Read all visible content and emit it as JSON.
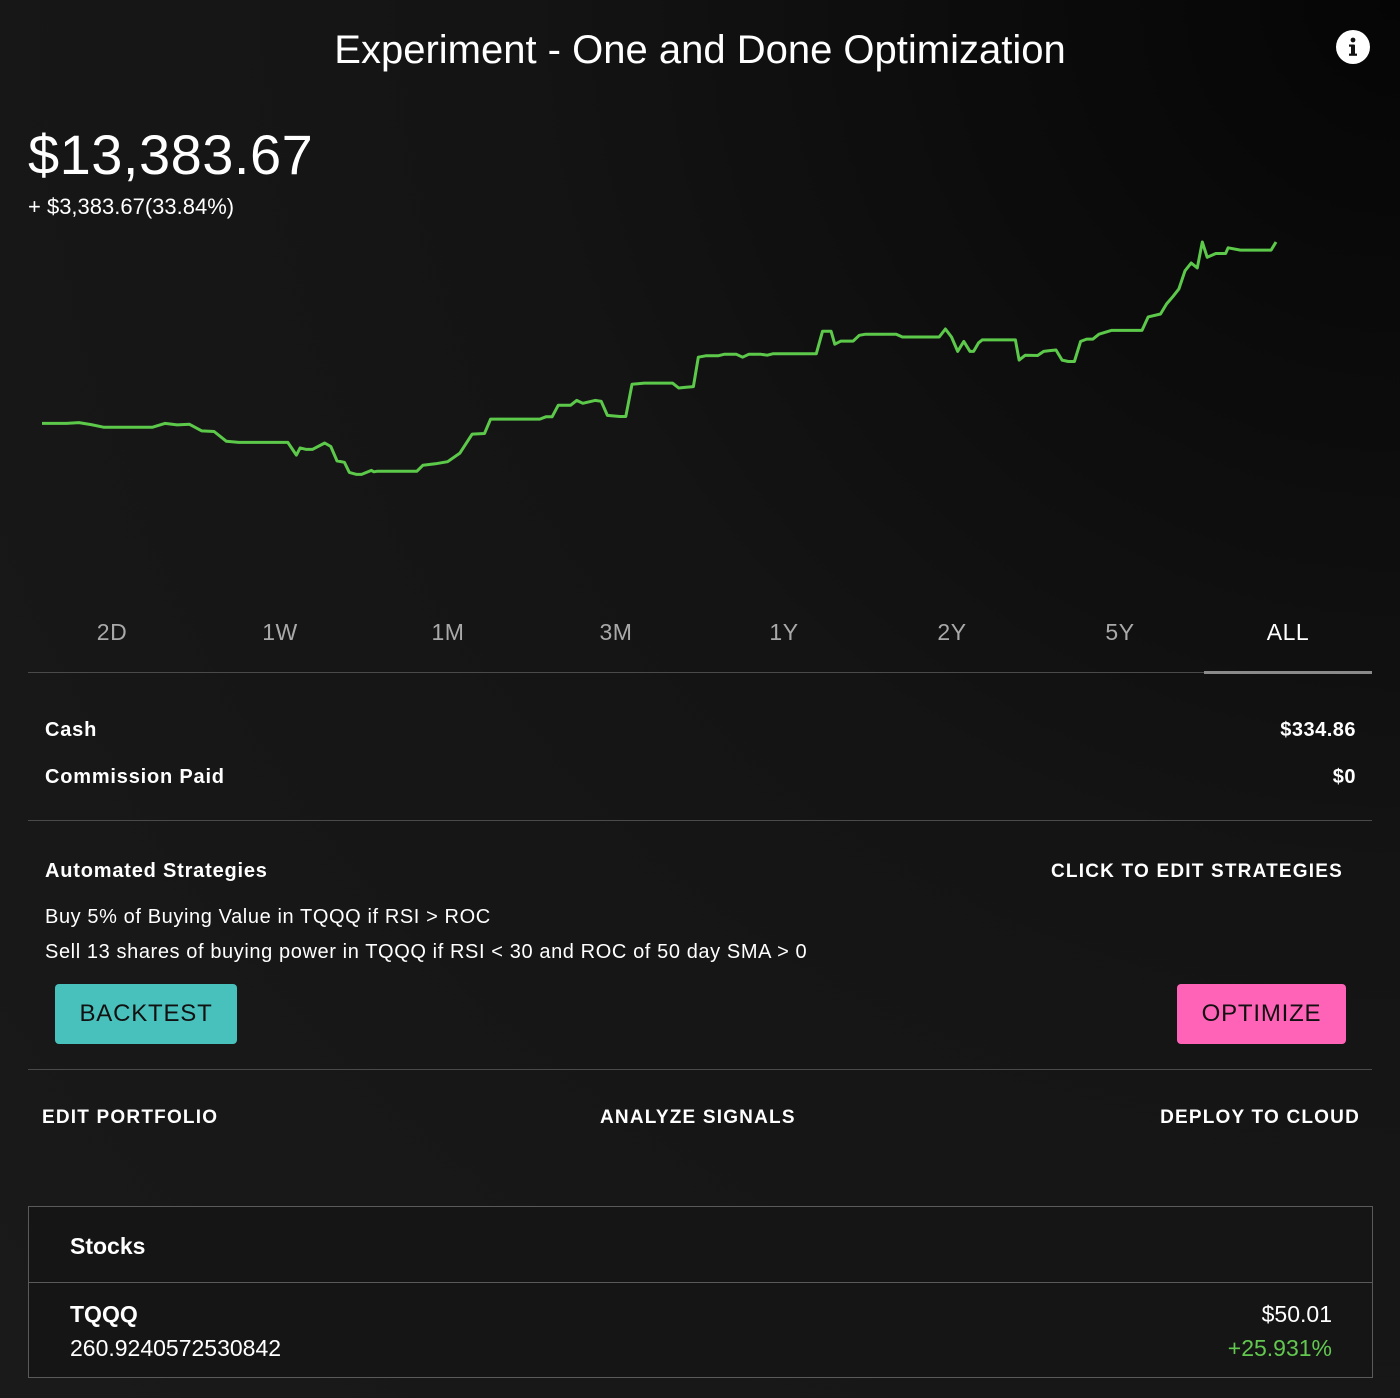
{
  "header": {
    "title": "Experiment - One and Done Optimization",
    "info_icon": "info-icon"
  },
  "portfolio": {
    "value": "$13,383.67",
    "change": "+ $3,383.67(33.84%)"
  },
  "chart_data": {
    "type": "line",
    "title": "",
    "xlabel": "",
    "ylabel": "",
    "color": "#5cc94a",
    "grid": false,
    "ylim": [
      0,
      100
    ],
    "series": [
      {
        "name": "",
        "values": [
          [
            0,
            37
          ],
          [
            2,
            37
          ],
          [
            3,
            37.3
          ],
          [
            4,
            36.6
          ],
          [
            5,
            35.7
          ],
          [
            9,
            35.7
          ],
          [
            10,
            37
          ],
          [
            11,
            36.5
          ],
          [
            12,
            36.7
          ],
          [
            13,
            34.4
          ],
          [
            14,
            34.2
          ],
          [
            15,
            30.8
          ],
          [
            16,
            30.4
          ],
          [
            19,
            30.4
          ],
          [
            20,
            30.4
          ],
          [
            20.7,
            26
          ],
          [
            21,
            28.5
          ],
          [
            21.5,
            28
          ],
          [
            22,
            28
          ],
          [
            23,
            30.2
          ],
          [
            23.5,
            29
          ],
          [
            24,
            24
          ],
          [
            24.6,
            23.5
          ],
          [
            25,
            20
          ],
          [
            25.6,
            19.3
          ],
          [
            26,
            19.3
          ],
          [
            26.8,
            20.7
          ],
          [
            27,
            20.2
          ],
          [
            27.3,
            20.4
          ],
          [
            30.5,
            20.4
          ],
          [
            31,
            22.5
          ],
          [
            32,
            23
          ],
          [
            33,
            23.7
          ],
          [
            34,
            26.7
          ],
          [
            35,
            33.3
          ],
          [
            36,
            33.5
          ],
          [
            36.5,
            38.5
          ],
          [
            40.5,
            38.5
          ],
          [
            41,
            39.3
          ],
          [
            41.5,
            39.3
          ],
          [
            42,
            43.3
          ],
          [
            43,
            43.3
          ],
          [
            43.5,
            45
          ],
          [
            44,
            44
          ],
          [
            45,
            45
          ],
          [
            45.5,
            44.7
          ],
          [
            46,
            39.8
          ],
          [
            47,
            39.4
          ],
          [
            47.5,
            39.4
          ],
          [
            48,
            50.6
          ],
          [
            49,
            51
          ],
          [
            51,
            51
          ],
          [
            51.3,
            51
          ],
          [
            51.8,
            49.3
          ],
          [
            52.3,
            49.5
          ],
          [
            53,
            49.8
          ],
          [
            53.4,
            60
          ],
          [
            54,
            60.5
          ],
          [
            55,
            60.5
          ],
          [
            55.5,
            61
          ],
          [
            56.5,
            61
          ],
          [
            57,
            60
          ],
          [
            57.5,
            61
          ],
          [
            58,
            61
          ],
          [
            58.5,
            61
          ],
          [
            59,
            60.7
          ],
          [
            59.5,
            61.2
          ],
          [
            63,
            61.2
          ],
          [
            63.5,
            69
          ],
          [
            64.2,
            69
          ],
          [
            64.5,
            64.5
          ],
          [
            65,
            65.6
          ],
          [
            66,
            65.6
          ],
          [
            66.5,
            67.6
          ],
          [
            67,
            68
          ],
          [
            68,
            68
          ],
          [
            69.5,
            68
          ],
          [
            70,
            67
          ],
          [
            71,
            67
          ],
          [
            71.5,
            67
          ],
          [
            73,
            67
          ],
          [
            73.5,
            69.8
          ],
          [
            74,
            67
          ],
          [
            74.5,
            62
          ],
          [
            75,
            65.5
          ],
          [
            75.5,
            62
          ],
          [
            75.8,
            62
          ],
          [
            76.2,
            65
          ],
          [
            76.5,
            66
          ],
          [
            79.2,
            66
          ],
          [
            79.5,
            59
          ],
          [
            80,
            60.7
          ],
          [
            81,
            60.6
          ],
          [
            81.5,
            62
          ],
          [
            82,
            62.3
          ],
          [
            82.5,
            62.5
          ],
          [
            83,
            59
          ],
          [
            83.5,
            58.5
          ],
          [
            84,
            58.5
          ],
          [
            84.5,
            65.5
          ],
          [
            85,
            66.3
          ],
          [
            85.5,
            66.3
          ],
          [
            86,
            68
          ],
          [
            87,
            69.3
          ],
          [
            89.5,
            69.3
          ],
          [
            90,
            74
          ],
          [
            91,
            75
          ],
          [
            91.5,
            78.5
          ],
          [
            92,
            81
          ],
          [
            92.5,
            83.7
          ],
          [
            93,
            90
          ],
          [
            93.5,
            92.7
          ],
          [
            94,
            91
          ],
          [
            94.4,
            100
          ],
          [
            94.8,
            94.7
          ],
          [
            95.5,
            96
          ],
          [
            96,
            96
          ],
          [
            96.3,
            96
          ],
          [
            96.5,
            98
          ],
          [
            97.5,
            97.2
          ],
          [
            100,
            97.2
          ],
          [
            100.4,
            100
          ]
        ]
      }
    ]
  },
  "ranges": [
    {
      "label": "2D",
      "active": false
    },
    {
      "label": "1W",
      "active": false
    },
    {
      "label": "1M",
      "active": false
    },
    {
      "label": "3M",
      "active": false
    },
    {
      "label": "1Y",
      "active": false
    },
    {
      "label": "2Y",
      "active": false
    },
    {
      "label": "5Y",
      "active": false
    },
    {
      "label": "ALL",
      "active": true
    }
  ],
  "summary": {
    "cash_label": "Cash",
    "cash_value": "$334.86",
    "commission_label": "Commission Paid",
    "commission_value": "$0"
  },
  "strategies": {
    "heading": "Automated Strategies",
    "edit_link": "CLICK TO EDIT STRATEGIES",
    "rules": [
      "Buy 5% of Buying Value in TQQQ if RSI > ROC",
      "Sell 13 shares of buying power in TQQQ if RSI < 30 and ROC of 50 day SMA > 0"
    ],
    "backtest_label": "BACKTEST",
    "optimize_label": "OPTIMIZE",
    "backtest_color": "#48c1bd",
    "optimize_color": "#ff63b7"
  },
  "actions": {
    "edit_portfolio": "EDIT PORTFOLIO",
    "analyze_signals": "ANALYZE SIGNALS",
    "deploy_cloud": "DEPLOY TO CLOUD"
  },
  "stocks": {
    "header": "Stocks",
    "items": [
      {
        "symbol": "TQQQ",
        "quantity": "260.9240572530842",
        "price": "$50.01",
        "change": "+25.931%",
        "change_color": "#62c84f"
      }
    ]
  }
}
